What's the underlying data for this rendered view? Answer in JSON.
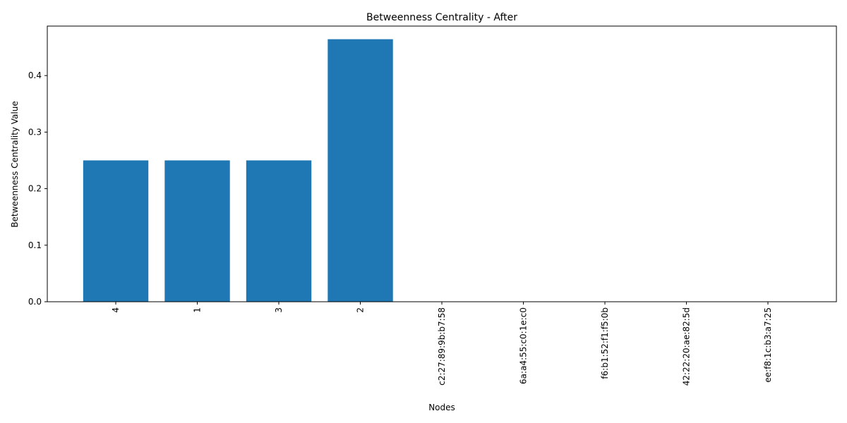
{
  "chart_data": {
    "type": "bar",
    "title": "Betweenness Centrality - After",
    "xlabel": "Nodes",
    "ylabel": "Betweenness Centrality Value",
    "categories": [
      "4",
      "1",
      "3",
      "2",
      "c2:27:89:9b:b7:58",
      "6a:a4:55:c0:1e:c0",
      "f6:b1:52:f1:f5:0b",
      "42:22:20:ae:82:5d",
      "ee:f8:1c:b3:a7:25"
    ],
    "values": [
      0.25,
      0.25,
      0.25,
      0.4643,
      0,
      0,
      0,
      0,
      0
    ],
    "ylim": [
      0,
      0.4875
    ],
    "yticks": [
      0.0,
      0.1,
      0.2,
      0.3,
      0.4
    ],
    "ytick_labels": [
      "0.0",
      "0.1",
      "0.2",
      "0.3",
      "0.4"
    ],
    "bar_color": "#1f77b4",
    "grid": false,
    "legend": "none"
  }
}
